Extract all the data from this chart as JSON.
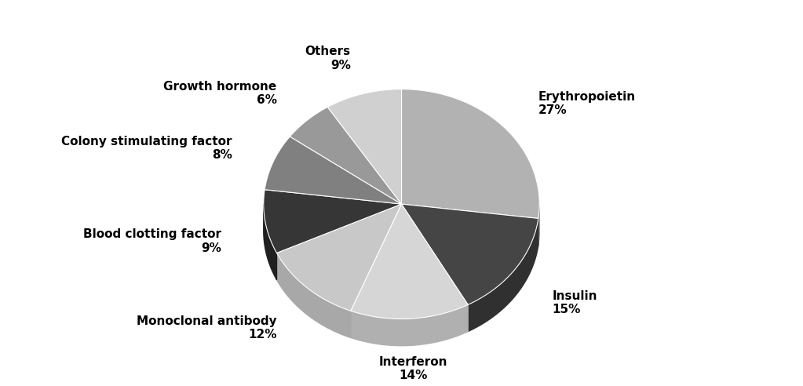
{
  "labels": [
    "Erythropoietin",
    "Insulin",
    "Interferon",
    "Monoclonal antibody",
    "Blood clotting factor",
    "Colony stimulating factor",
    "Growth hormone",
    "Others"
  ],
  "pcts": [
    "27%",
    "15%",
    "14%",
    "12%",
    "9%",
    "8%",
    "6%",
    "9%"
  ],
  "values": [
    27,
    15,
    14,
    12,
    9,
    8,
    6,
    9
  ],
  "colors": [
    "#b2b2b2",
    "#454545",
    "#d6d6d6",
    "#c8c8c8",
    "#363636",
    "#808080",
    "#999999",
    "#d0d0d0"
  ],
  "shadow_colors": [
    "#909090",
    "#303030",
    "#b0b0b0",
    "#a8a8a8",
    "#202020",
    "#606060",
    "#777777",
    "#b0b0b0"
  ],
  "startangle": 90,
  "background_color": "#ffffff",
  "depth": 0.07,
  "label_fontsize": 11
}
